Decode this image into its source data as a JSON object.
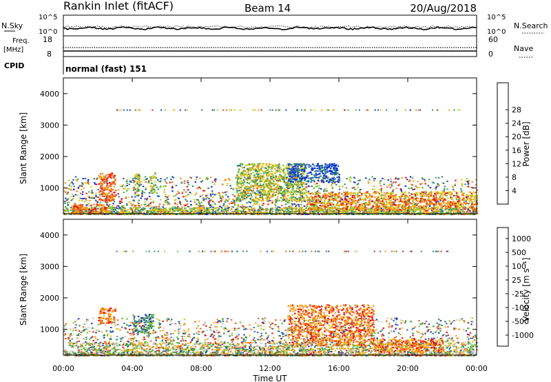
{
  "header": {
    "station": "Rankin Inlet (fitACF)",
    "beam": "Beam 14",
    "date": "20/Aug/2018"
  },
  "summary": {
    "nsky_label": "N.Sky",
    "nsearch_label": "N.Search",
    "freq_label_line1": "Freq.",
    "freq_label_line2": "[MHz]",
    "nave_label": "Nave",
    "cpid_label": "CPID",
    "cpid_text": "normal (fast) 151",
    "noise_ticks_left": [
      "10^5",
      "10^0"
    ],
    "noise_ticks_right": [
      "10^5",
      "10^0"
    ],
    "freq_ticks": [
      "18",
      "8"
    ],
    "nave_ticks": [
      "60",
      "0"
    ]
  },
  "chart_data": [
    {
      "type": "heatmap",
      "panel": "power",
      "ylabel": "Slant Range [km]",
      "ylim": [
        180,
        4500
      ],
      "yticks": [
        "1000",
        "2000",
        "3000",
        "4000"
      ],
      "xticks": [
        "00:00",
        "04:00",
        "08:00",
        "12:00",
        "16:00",
        "20:00",
        "00:00"
      ],
      "colorbar": {
        "label": "Power [dB]",
        "ticks": [
          "4",
          "8",
          "12",
          "16",
          "20",
          "24",
          "28"
        ],
        "colors": [
          "#0b2fe0",
          "#2b55b8",
          "#2f8a72",
          "#49b04d",
          "#aacf2e",
          "#e8c81e",
          "#f59a16",
          "#f2601a",
          "#e61414"
        ]
      },
      "features": [
        {
          "x": [
            0.0,
            24.0
          ],
          "y": [
            180,
            400
          ],
          "level": "low-mid"
        },
        {
          "x": [
            0.5,
            2.5
          ],
          "y": [
            200,
            500
          ],
          "level": "high"
        },
        {
          "x": [
            2.0,
            3.0
          ],
          "y": [
            600,
            1500
          ],
          "level": "high"
        },
        {
          "x": [
            4.0,
            4.4
          ],
          "y": [
            800,
            1500
          ],
          "level": "mid"
        },
        {
          "x": [
            5.0,
            5.3
          ],
          "y": [
            800,
            1500
          ],
          "level": "mid"
        },
        {
          "x": [
            10.0,
            14.0
          ],
          "y": [
            600,
            1800
          ],
          "level": "mid"
        },
        {
          "x": [
            13.0,
            16.0
          ],
          "y": [
            1200,
            1800
          ],
          "level": "low"
        },
        {
          "x": [
            14.0,
            24.0
          ],
          "y": [
            300,
            900
          ],
          "level": "mid-high"
        }
      ]
    },
    {
      "type": "heatmap",
      "panel": "velocity",
      "ylabel": "Slant Range [km]",
      "ylim": [
        180,
        4500
      ],
      "yticks": [
        "1000",
        "2000",
        "3000",
        "4000"
      ],
      "xticks": [
        "00:00",
        "04:00",
        "08:00",
        "12:00",
        "16:00",
        "20:00",
        "00:00"
      ],
      "xlabel": "Time UT",
      "colorbar": {
        "label": "Velocity [m s⁻¹]",
        "ticks": [
          "1000",
          "500",
          "100",
          "25",
          "-25",
          "-100",
          "-500",
          "-1000"
        ],
        "colors": [
          "#1f3fb5",
          "#3a70a8",
          "#2e8a5a",
          "#67c23a",
          "#c8c8c8",
          "#f2b71d",
          "#f7941d",
          "#f25c1a",
          "#e61414"
        ]
      },
      "features": [
        {
          "x": [
            0.0,
            24.0
          ],
          "y": [
            180,
            600
          ],
          "level": "mixed"
        },
        {
          "x": [
            2.0,
            3.0
          ],
          "y": [
            1200,
            1700
          ],
          "level": "negative"
        },
        {
          "x": [
            4.0,
            5.2
          ],
          "y": [
            900,
            1500
          ],
          "level": "positive"
        },
        {
          "x": [
            13.0,
            18.0
          ],
          "y": [
            500,
            1800
          ],
          "level": "negative"
        },
        {
          "x": [
            18.0,
            22.0
          ],
          "y": [
            300,
            700
          ],
          "level": "negative"
        }
      ]
    }
  ]
}
